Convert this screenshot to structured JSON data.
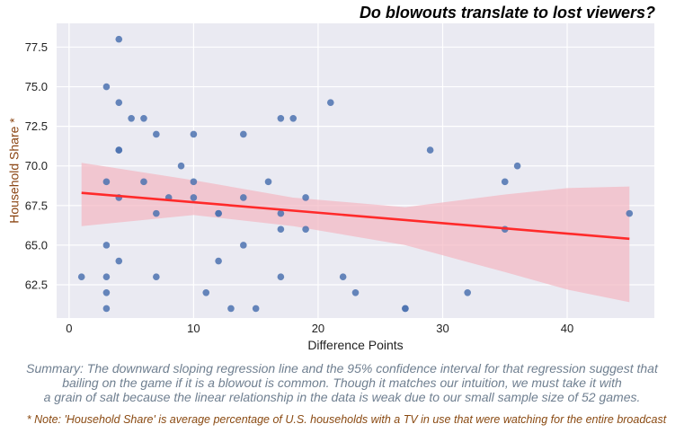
{
  "chart_data": {
    "type": "scatter",
    "title": "Do blowouts translate to lost viewers?",
    "xlabel": "Difference Points",
    "ylabel": "Household Share *",
    "xlim": [
      -1,
      47
    ],
    "ylim": [
      60.4,
      79.0
    ],
    "xticks": [
      0,
      10,
      20,
      30,
      40
    ],
    "yticks": [
      62.5,
      65.0,
      67.5,
      70.0,
      72.5,
      75.0,
      77.5
    ],
    "ytick_labels": [
      "62.5",
      "65.0",
      "67.5",
      "70.0",
      "72.5",
      "75.0",
      "77.5"
    ],
    "grid": true,
    "colors": {
      "background": "#eaeaf2",
      "points": "#4c72b0",
      "regression_line": "#ff2a2a",
      "confidence_band": "#f4b6c2",
      "ylabel": "#8b4513"
    },
    "points": [
      {
        "x": 1,
        "y": 63
      },
      {
        "x": 3,
        "y": 61
      },
      {
        "x": 3,
        "y": 62
      },
      {
        "x": 3,
        "y": 63
      },
      {
        "x": 3,
        "y": 65
      },
      {
        "x": 3,
        "y": 69
      },
      {
        "x": 3,
        "y": 75
      },
      {
        "x": 4,
        "y": 78
      },
      {
        "x": 4,
        "y": 74
      },
      {
        "x": 4,
        "y": 71
      },
      {
        "x": 4,
        "y": 71
      },
      {
        "x": 4,
        "y": 68
      },
      {
        "x": 4,
        "y": 64
      },
      {
        "x": 5,
        "y": 73
      },
      {
        "x": 6,
        "y": 73
      },
      {
        "x": 6,
        "y": 69
      },
      {
        "x": 7,
        "y": 72
      },
      {
        "x": 7,
        "y": 67
      },
      {
        "x": 7,
        "y": 63
      },
      {
        "x": 8,
        "y": 68
      },
      {
        "x": 9,
        "y": 70
      },
      {
        "x": 10,
        "y": 72
      },
      {
        "x": 10,
        "y": 69
      },
      {
        "x": 10,
        "y": 68
      },
      {
        "x": 11,
        "y": 62
      },
      {
        "x": 12,
        "y": 67
      },
      {
        "x": 12,
        "y": 67
      },
      {
        "x": 12,
        "y": 64
      },
      {
        "x": 13,
        "y": 61
      },
      {
        "x": 14,
        "y": 72
      },
      {
        "x": 14,
        "y": 68
      },
      {
        "x": 14,
        "y": 65
      },
      {
        "x": 15,
        "y": 61
      },
      {
        "x": 16,
        "y": 69
      },
      {
        "x": 17,
        "y": 73
      },
      {
        "x": 17,
        "y": 67
      },
      {
        "x": 17,
        "y": 66
      },
      {
        "x": 17,
        "y": 63
      },
      {
        "x": 18,
        "y": 73
      },
      {
        "x": 19,
        "y": 68
      },
      {
        "x": 19,
        "y": 66
      },
      {
        "x": 21,
        "y": 74
      },
      {
        "x": 22,
        "y": 63
      },
      {
        "x": 23,
        "y": 62
      },
      {
        "x": 27,
        "y": 61
      },
      {
        "x": 27,
        "y": 61
      },
      {
        "x": 29,
        "y": 71
      },
      {
        "x": 32,
        "y": 62
      },
      {
        "x": 35,
        "y": 69
      },
      {
        "x": 35,
        "y": 66
      },
      {
        "x": 36,
        "y": 70
      },
      {
        "x": 45,
        "y": 67
      }
    ],
    "regression": {
      "x": [
        1,
        45
      ],
      "y": [
        68.3,
        65.4
      ]
    },
    "confidence_band": [
      {
        "x": 1,
        "lower": 66.2,
        "upper": 70.2
      },
      {
        "x": 10,
        "lower": 66.9,
        "upper": 69.1
      },
      {
        "x": 18,
        "lower": 66.2,
        "upper": 68.0
      },
      {
        "x": 27,
        "lower": 65.0,
        "upper": 67.4
      },
      {
        "x": 35,
        "lower": 63.3,
        "upper": 68.2
      },
      {
        "x": 40,
        "lower": 62.2,
        "upper": 68.6
      },
      {
        "x": 45,
        "lower": 61.4,
        "upper": 68.7
      }
    ]
  },
  "summary": [
    "Summary: The downward sloping regression line and the 95% confidence interval for that regression suggest that",
    "bailing on the game if it is a blowout is common. Though it matches our intuition, we must take it with",
    "a grain of salt because the linear relationship in the data is weak due to our small sample size of 52 games."
  ],
  "footnote": "* Note: 'Household Share' is average percentage of U.S. households with a TV in use that were watching for the entire broadcast"
}
